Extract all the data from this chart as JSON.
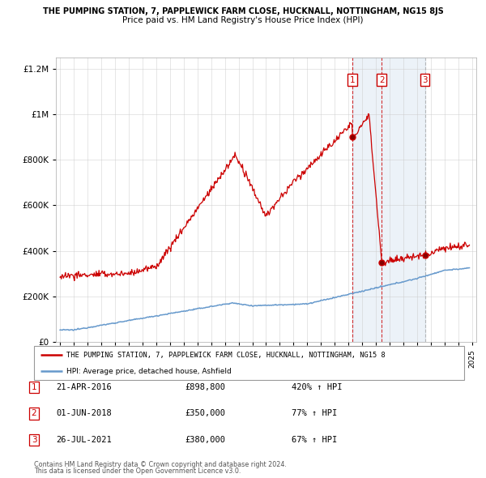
{
  "title1": "THE PUMPING STATION, 7, PAPPLEWICK FARM CLOSE, HUCKNALL, NOTTINGHAM, NG15 8JS",
  "title2": "Price paid vs. HM Land Registry's House Price Index (HPI)",
  "red_label": "THE PUMPING STATION, 7, PAPPLEWICK FARM CLOSE, HUCKNALL, NOTTINGHAM, NG15 8",
  "blue_label": "HPI: Average price, detached house, Ashfield",
  "transactions": [
    {
      "num": 1,
      "date": "21-APR-2016",
      "price": 898800,
      "pct": "420%",
      "direction": "↑",
      "date_x": 2016.3
    },
    {
      "num": 2,
      "date": "01-JUN-2018",
      "price": 350000,
      "pct": "77%",
      "direction": "↑",
      "date_x": 2018.42
    },
    {
      "num": 3,
      "date": "26-JUL-2021",
      "price": 380000,
      "pct": "67%",
      "direction": "↑",
      "date_x": 2021.56
    }
  ],
  "footer1": "Contains HM Land Registry data © Crown copyright and database right 2024.",
  "footer2": "This data is licensed under the Open Government Licence v3.0.",
  "red_color": "#cc0000",
  "blue_color": "#6699cc",
  "blue_fill": "#ddeeff",
  "grid_color": "#cccccc",
  "ylim": [
    0,
    1250000
  ],
  "xlim_start": 1994.7,
  "xlim_end": 2025.3
}
